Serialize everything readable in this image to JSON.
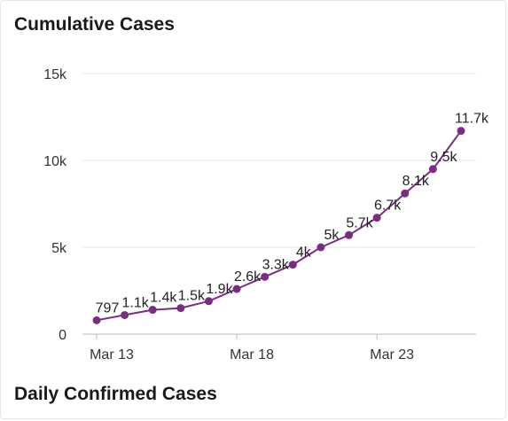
{
  "card": {
    "title": "Cumulative Cases",
    "next_section_title": "Daily Confirmed Cases"
  },
  "colors": {
    "series": "#7b2d84",
    "grid": "#e6e6e6",
    "axis": "#bbbbbb"
  },
  "chart_data": {
    "type": "line",
    "title": "Cumulative Cases",
    "xlabel": "",
    "ylabel": "",
    "x": [
      "Mar 13",
      "Mar 14",
      "Mar 15",
      "Mar 16",
      "Mar 17",
      "Mar 18",
      "Mar 19",
      "Mar 20",
      "Mar 21",
      "Mar 22",
      "Mar 23",
      "Mar 24",
      "Mar 25",
      "Mar 26"
    ],
    "x_tick_labels": [
      "Mar 13",
      "Mar 18",
      "Mar 23"
    ],
    "y_tick_labels": [
      "0",
      "5k",
      "10k",
      "15k"
    ],
    "ylim": [
      0,
      15000
    ],
    "grid": true,
    "series": [
      {
        "values": [
          797,
          1100,
          1400,
          1500,
          1900,
          2600,
          3300,
          4000,
          5000,
          5700,
          6700,
          8100,
          9500,
          11700
        ],
        "labels": [
          "797",
          "1.1k",
          "1.4k",
          "1.5k",
          "1.9k",
          "2.6k",
          "3.3k",
          "4k",
          "5k",
          "5.7k",
          "6.7k",
          "8.1k",
          "9.5k",
          "11.7k"
        ]
      }
    ]
  }
}
